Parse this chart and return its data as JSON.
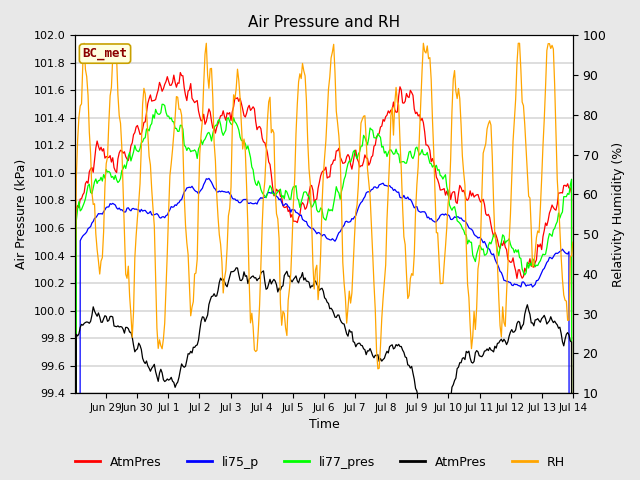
{
  "title": "Air Pressure and RH",
  "xlabel": "Time",
  "ylabel_left": "Air Pressure (kPa)",
  "ylabel_right": "Relativity Humidity (%)",
  "ylim_left": [
    99.4,
    102.0
  ],
  "ylim_right": [
    10,
    100
  ],
  "yticks_left": [
    99.4,
    99.6,
    99.8,
    100.0,
    100.2,
    100.4,
    100.6,
    100.8,
    101.0,
    101.2,
    101.4,
    101.6,
    101.8,
    102.0
  ],
  "yticks_right": [
    10,
    20,
    30,
    40,
    50,
    60,
    70,
    80,
    90,
    100
  ],
  "annotation": "BC_met",
  "legend_entries": [
    "AtmPres",
    "li75_p",
    "li77_pres",
    "AtmPres",
    "RH"
  ],
  "line_colors": [
    "red",
    "blue",
    "lime",
    "black",
    "orange"
  ],
  "fig_facecolor": "#e8e8e8",
  "plot_facecolor": "#ffffff",
  "grid_color": "#d8d8d8",
  "xtick_labels": [
    "Jun 29",
    "Jun 30",
    "Jul 1",
    "Jul 2",
    "Jul 3",
    "Jul 4",
    "Jul 5",
    "Jul 6",
    "Jul 7",
    "Jul 8",
    "Jul 9",
    "Jul 10",
    "Jul 11",
    "Jul 12",
    "Jul 13",
    "Jul 14"
  ],
  "n_days": 16,
  "hours_per_day": 24,
  "seed": 123
}
